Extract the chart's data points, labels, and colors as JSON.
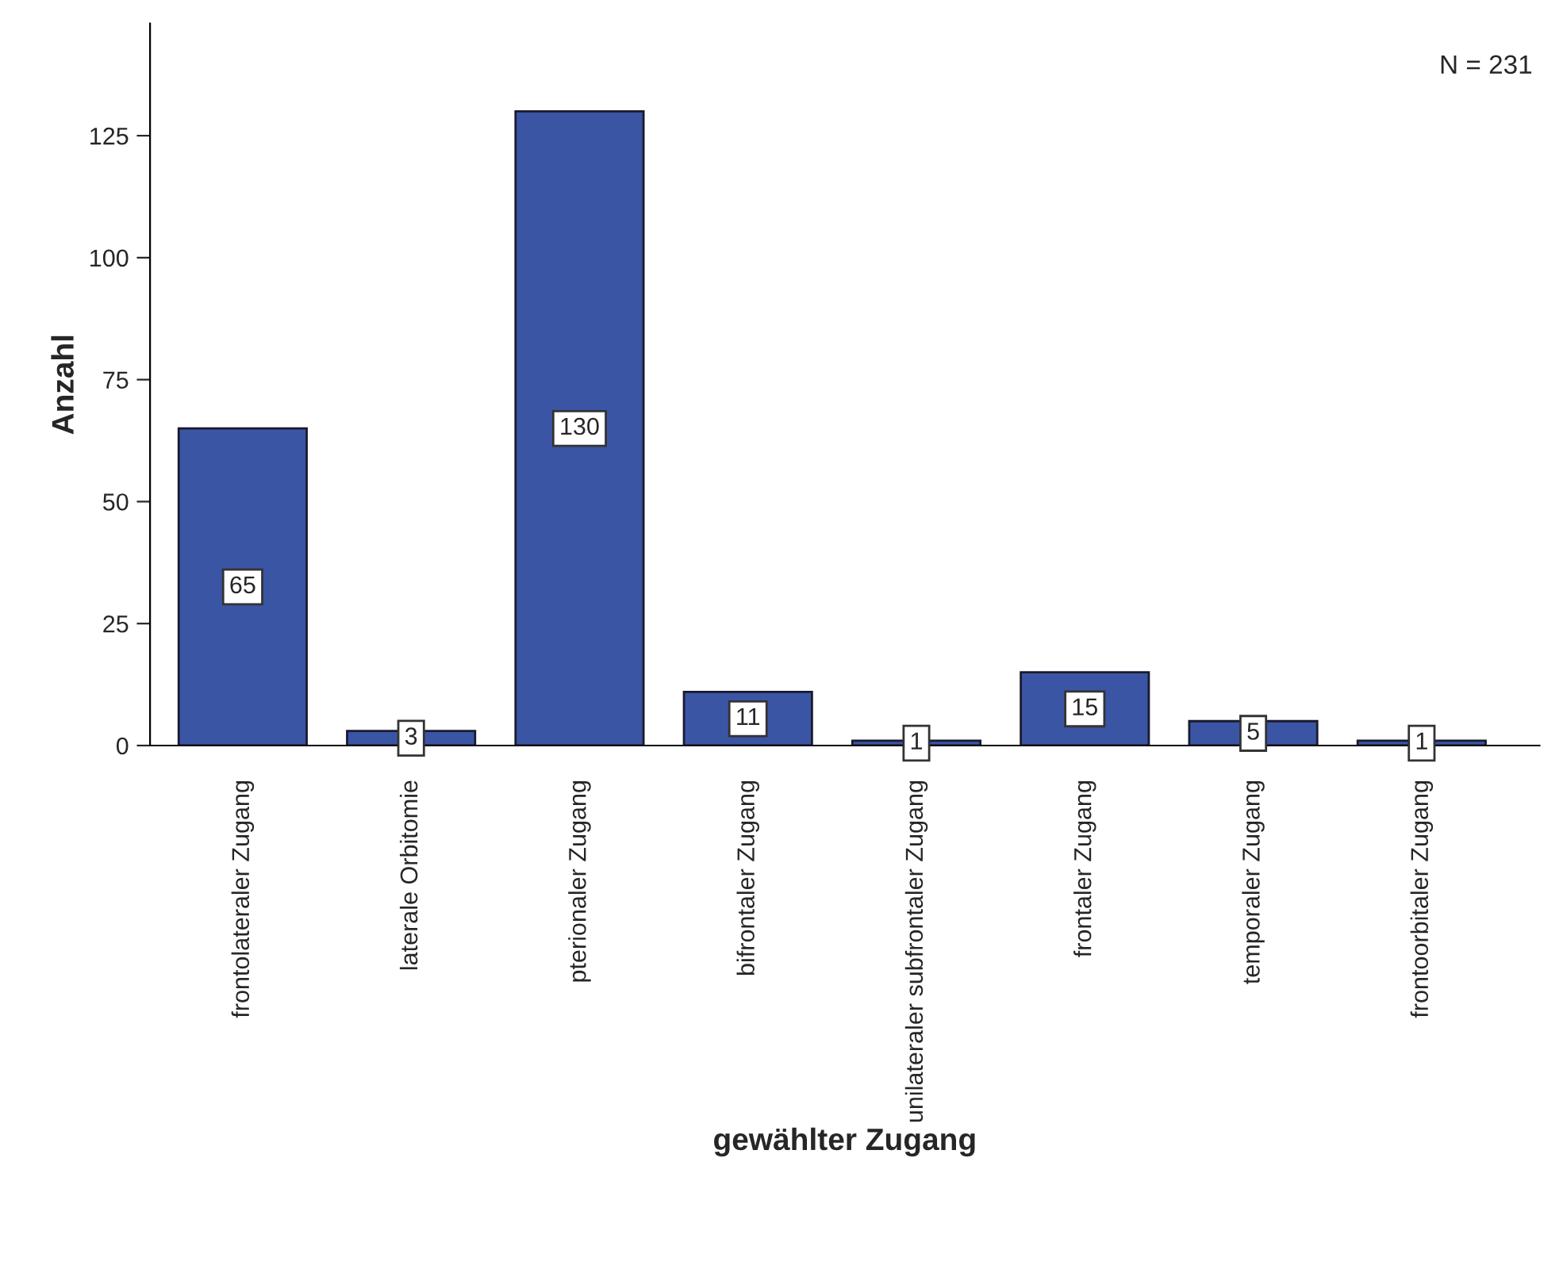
{
  "chart_data": {
    "type": "bar",
    "xlabel": "gewählter Zugang",
    "ylabel": "Anzahl",
    "categories": [
      "frontolateraler Zugang",
      "laterale Orbitomie",
      "pterionaler Zugang",
      "bifrontaler Zugang",
      "unilateraler subfrontaler Zugang",
      "frontaler Zugang",
      "temporaler Zugang",
      "frontoorbitaler Zugang"
    ],
    "values": [
      65,
      3,
      130,
      11,
      1,
      15,
      5,
      1
    ],
    "color": "#3b55a5",
    "ylim": [
      0,
      148
    ],
    "yticks": [
      0,
      25,
      50,
      75,
      100,
      125
    ],
    "data_labels": true,
    "grid": false,
    "legend": false,
    "annotations": [
      "N = 231"
    ]
  }
}
